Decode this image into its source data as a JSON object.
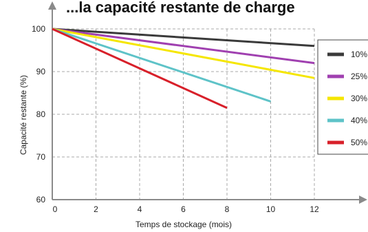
{
  "chart_data": {
    "type": "line",
    "title": "...la capacité restante de charge",
    "xlabel": "Temps de stockage (mois)",
    "ylabel": "Capacité restante (%)",
    "xlim": [
      0,
      12
    ],
    "ylim": [
      60,
      100
    ],
    "x_ticks": [
      "0",
      "2",
      "4",
      "6",
      "8",
      "10",
      "12"
    ],
    "y_ticks": [
      "60",
      "70",
      "80",
      "90",
      "100"
    ],
    "grid": true,
    "legend_position": "right",
    "series": [
      {
        "name": "10%",
        "color": "#3a3a3a",
        "x": [
          0,
          12
        ],
        "y": [
          100,
          96
        ]
      },
      {
        "name": "25%",
        "color": "#a040b0",
        "x": [
          0,
          12
        ],
        "y": [
          100,
          92
        ]
      },
      {
        "name": "30%",
        "color": "#f5e600",
        "x": [
          0,
          12
        ],
        "y": [
          100,
          88.5
        ]
      },
      {
        "name": "40%",
        "color": "#5ec3c8",
        "x": [
          0,
          10
        ],
        "y": [
          100,
          83
        ]
      },
      {
        "name": "50%",
        "color": "#d8202a",
        "x": [
          0,
          8
        ],
        "y": [
          100,
          81.5
        ]
      }
    ]
  }
}
